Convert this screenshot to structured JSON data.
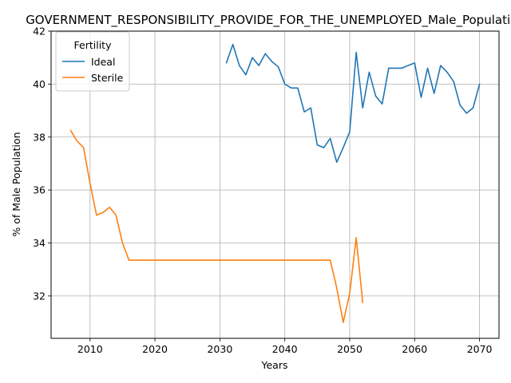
{
  "chart_data": {
    "type": "line",
    "title": "GOVERNMENT_RESPONSIBILITY_PROVIDE_FOR_THE_UNEMPLOYED_Male_Population",
    "xlabel": "Years",
    "ylabel": "% of Male Population",
    "xlim": [
      2004,
      2073
    ],
    "ylim": [
      30.4,
      42.0
    ],
    "xticks": [
      2010,
      2020,
      2030,
      2040,
      2050,
      2060,
      2070
    ],
    "yticks": [
      32,
      34,
      36,
      38,
      40,
      42
    ],
    "grid": true,
    "legend": {
      "title": "Fertility",
      "placement": "top-left"
    },
    "series": [
      {
        "name": "Ideal",
        "color": "#1f77b4",
        "x": [
          2031,
          2032,
          2033,
          2034,
          2035,
          2036,
          2037,
          2038,
          2039,
          2040,
          2041,
          2042,
          2043,
          2044,
          2045,
          2046,
          2047,
          2048,
          2049,
          2050,
          2051,
          2052,
          2053,
          2054,
          2055,
          2056,
          2057,
          2058,
          2059,
          2060,
          2061,
          2062,
          2063,
          2064,
          2065,
          2066,
          2067,
          2068,
          2069,
          2070
        ],
        "values": [
          40.8,
          41.5,
          40.7,
          40.35,
          41.0,
          40.7,
          41.15,
          40.85,
          40.65,
          40.0,
          39.85,
          39.85,
          38.95,
          39.1,
          37.7,
          37.6,
          37.95,
          37.05,
          37.6,
          38.2,
          41.2,
          39.1,
          40.45,
          39.55,
          39.25,
          40.6,
          40.6,
          40.6,
          40.7,
          40.8,
          39.5,
          40.6,
          39.65,
          40.7,
          40.45,
          40.1,
          39.2,
          38.9,
          39.1,
          40.0
        ]
      },
      {
        "name": "Sterile",
        "color": "#ff7f0e",
        "x": [
          2007,
          2008,
          2009,
          2010,
          2011,
          2012,
          2013,
          2014,
          2015,
          2016,
          2020,
          2025,
          2030,
          2035,
          2040,
          2045,
          2047,
          2048,
          2049,
          2050,
          2051,
          2052
        ],
        "values": [
          38.25,
          37.85,
          37.6,
          36.25,
          35.05,
          35.15,
          35.35,
          35.05,
          34.0,
          33.35,
          33.35,
          33.35,
          33.35,
          33.35,
          33.35,
          33.35,
          33.35,
          32.3,
          31.0,
          32.1,
          34.2,
          31.75
        ]
      }
    ]
  }
}
